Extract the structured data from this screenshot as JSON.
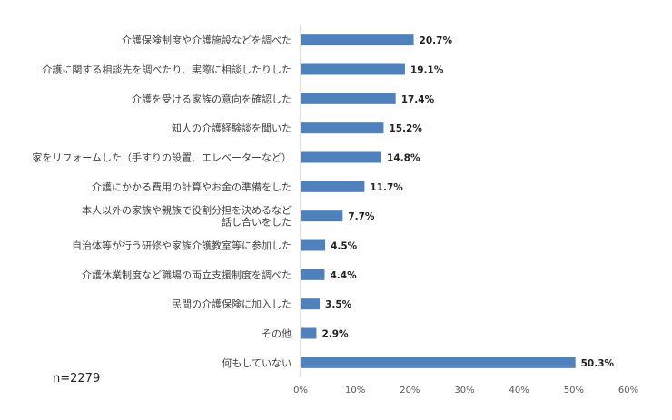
{
  "chart_data": {
    "type": "bar",
    "orientation": "horizontal",
    "categories": [
      "介護保険制度や介護施設などを調べた",
      "介護に関する相談先を調べたり、実際に相談したりした",
      "介護を受ける家族の意向を確認した",
      "知人の介護経験談を聞いた",
      "家をリフォームした（手すりの設置、エレベーターなど）",
      "介護にかかる費用の計算やお金の準備をした",
      "本人以外の家族や親族で役割分担を決めるなど\n話し合いをした",
      "自治体等が行う研修や家族介護教室等に参加した",
      "介護休業制度など職場の両立支援制度を調べた",
      "民間の介護保険に加入した",
      "その他",
      "何もしていない"
    ],
    "values": [
      20.7,
      19.1,
      17.4,
      15.2,
      14.8,
      11.7,
      7.7,
      4.5,
      4.4,
      3.5,
      2.9,
      50.3
    ],
    "value_labels": [
      "20.7%",
      "19.1%",
      "17.4%",
      "15.2%",
      "14.8%",
      "11.7%",
      "7.7%",
      "4.5%",
      "4.4%",
      "3.5%",
      "2.9%",
      "50.3%"
    ],
    "xlim": [
      0,
      60
    ],
    "xticks": [
      0,
      10,
      20,
      30,
      40,
      50,
      60
    ],
    "xtick_labels": [
      "0%",
      "10%",
      "20%",
      "30%",
      "40%",
      "50%",
      "60%"
    ],
    "bar_color": "#4f81bd",
    "grid": false,
    "legend": "none"
  },
  "note": "n=2279"
}
